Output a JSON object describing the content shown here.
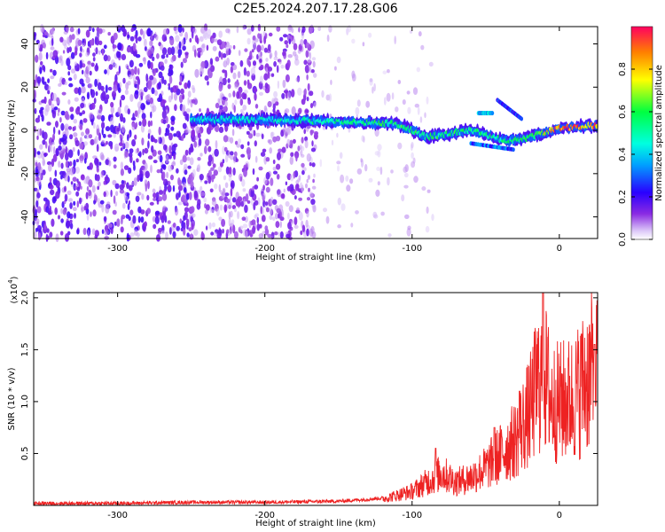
{
  "title": "C2E5.2024.207.17.28.G06",
  "colors": {
    "snr_line": "#ee2222",
    "axis": "#000000",
    "background": "#ffffff"
  },
  "chart_data": [
    {
      "type": "heatmap",
      "title": "C2E5.2024.207.17.28.G06",
      "xlabel": "Height of straight line (km)",
      "ylabel": "Frequency (Hz)",
      "xlim": [
        -357,
        26
      ],
      "ylim": [
        -50,
        48
      ],
      "x_ticks": [
        -300,
        -200,
        -100,
        0
      ],
      "y_ticks": [
        -40,
        -20,
        0,
        20,
        40
      ],
      "colorbar": {
        "label": "Normalized spectral amplitude",
        "range": [
          0,
          1
        ],
        "ticks": [
          "0.0",
          "0.2",
          "0.4",
          "0.6",
          "0.8"
        ],
        "colormap": "rainbow (white/violet low → blue → cyan → green → yellow → red high)"
      },
      "features": {
        "background_noise_region_km": [
          -357,
          -165
        ],
        "main_trace": [
          {
            "x": -250,
            "freq_hz": 5,
            "amp": 0.45
          },
          {
            "x": -200,
            "freq_hz": 5,
            "amp": 0.5
          },
          {
            "x": -150,
            "freq_hz": 4,
            "amp": 0.55
          },
          {
            "x": -110,
            "freq_hz": 3,
            "amp": 0.6
          },
          {
            "x": -90,
            "freq_hz": -3,
            "amp": 0.6
          },
          {
            "x": -60,
            "freq_hz": 0,
            "amp": 0.6
          },
          {
            "x": -35,
            "freq_hz": -5,
            "amp": 0.55
          },
          {
            "x": -20,
            "freq_hz": -3,
            "amp": 0.6
          },
          {
            "x": 0,
            "freq_hz": 1,
            "amp": 0.95
          },
          {
            "x": 20,
            "freq_hz": 2,
            "amp": 0.9
          }
        ]
      }
    },
    {
      "type": "line",
      "xlabel": "Height of straight line (km)",
      "ylabel": "SNR (10 * v/v)",
      "y_multiplier": "(x10",
      "y_multiplier_exp": "4",
      "xlim": [
        -357,
        26
      ],
      "ylim": [
        0,
        20500
      ],
      "x_ticks": [
        -300,
        -200,
        -100,
        0
      ],
      "y_ticks": [
        5000,
        10000,
        15000,
        20000
      ],
      "y_tick_labels": [
        "0.5",
        "1.0",
        "1.5",
        "2.0"
      ],
      "series": [
        {
          "x": [
            -357,
            -300,
            -250,
            -200,
            -150,
            -120,
            -100,
            -90,
            -80,
            -70,
            -60,
            -50,
            -40,
            -30,
            -20,
            -15,
            -10,
            -5,
            0,
            10,
            20,
            26
          ],
          "values": [
            200,
            200,
            300,
            300,
            400,
            700,
            1500,
            2500,
            3500,
            2500,
            3000,
            4000,
            5500,
            7000,
            10000,
            13000,
            14000,
            11000,
            11000,
            11500,
            14000,
            15000
          ],
          "peaks": [
            {
              "x": -84,
              "value": 5500
            },
            {
              "x": -44,
              "value": 7500
            },
            {
              "x": -27,
              "value": 11000
            },
            {
              "x": -11,
              "value": 20500
            },
            {
              "x": 15,
              "value": 16500
            },
            {
              "x": 24,
              "value": 15500
            }
          ]
        }
      ]
    }
  ]
}
